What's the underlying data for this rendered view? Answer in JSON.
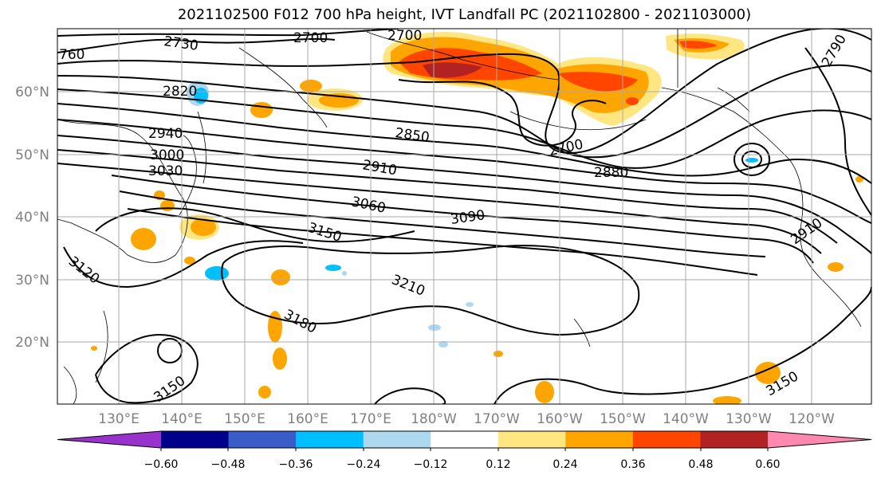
{
  "title": "2021102500 F012 700 hPa height, IVT Landfall PC (2021102800 - 2021103000)",
  "lat_labels": [
    "60°N",
    "50°N",
    "40°N",
    "30°N",
    "20°N"
  ],
  "lon_labels": [
    "130°E",
    "140°E",
    "150°E",
    "160°E",
    "170°E",
    "180°W",
    "170°W",
    "160°W",
    "150°W",
    "140°W",
    "130°W",
    "120°W"
  ],
  "contour_labels": [
    "2730",
    "2700",
    "2700",
    "760",
    "2820",
    "2940",
    "3000",
    "3030",
    "2850",
    "2910",
    "2700",
    "2880",
    "3060",
    "3090",
    "3150",
    "3120",
    "3210",
    "3180",
    "3150",
    "3150",
    "2910",
    "2790"
  ],
  "colorbar": {
    "ticks": [
      "−0.60",
      "−0.48",
      "−0.36",
      "−0.24",
      "−0.12",
      "0.12",
      "0.24",
      "0.36",
      "0.48",
      "0.60"
    ],
    "colors": [
      "#9932cc",
      "#00008b",
      "#3a5cc9",
      "#00bfff",
      "#add8f0",
      "#ffffff",
      "#ffe680",
      "#ffa500",
      "#ff4500",
      "#b22222",
      "#ff88b0"
    ]
  },
  "palette": {
    "contour": "#000000",
    "grid": "#a9a9a9",
    "coast": "#000000",
    "tick_label": "#808080"
  }
}
